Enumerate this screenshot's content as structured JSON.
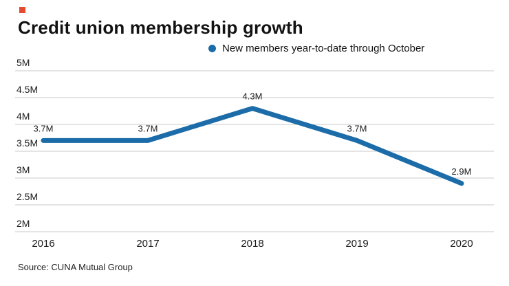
{
  "header": {
    "title": "Credit union membership growth"
  },
  "legend": {
    "label": "New members year-to-date through October"
  },
  "source": {
    "text": "Source: CUNA Mutual Group"
  },
  "colors": {
    "line": "#1b6ca8",
    "grid": "#c9c9c9",
    "text": "#1a1a1a",
    "brand_square": "#e5492e"
  },
  "chart_data": {
    "type": "line",
    "title": "Credit union membership growth",
    "x": [
      "2016",
      "2017",
      "2018",
      "2019",
      "2020"
    ],
    "series": [
      {
        "name": "New members year-to-date through October",
        "values": [
          3.7,
          3.7,
          4.3,
          3.7,
          2.9
        ]
      }
    ],
    "point_labels": [
      "3.7M",
      "3.7M",
      "4.3M",
      "3.7M",
      "2.9M"
    ],
    "ylim": [
      2,
      5
    ],
    "ytick_step": 0.5,
    "ytick_labels": [
      "2M",
      "2.5M",
      "3M",
      "3.5M",
      "4M",
      "4.5M",
      "5M"
    ],
    "xlabel": "",
    "ylabel": "",
    "grid": true,
    "legend_position": "top",
    "source": "Source: CUNA Mutual Group"
  }
}
